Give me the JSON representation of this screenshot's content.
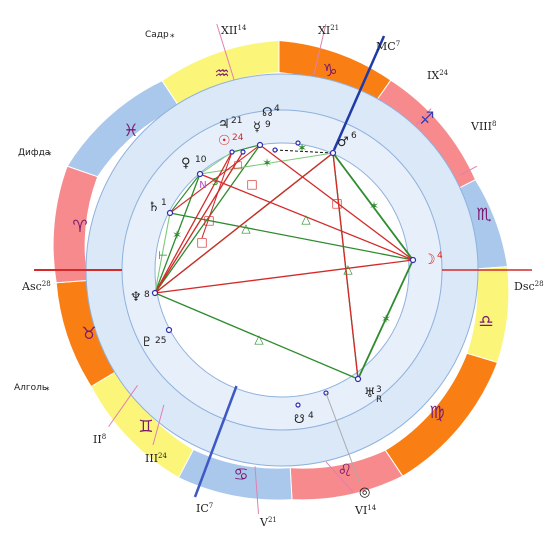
{
  "houses": {
    "asc": {
      "label": "Asc",
      "num": "28"
    },
    "dsc": {
      "label": "Dsc",
      "num": "28"
    },
    "mc": {
      "label": "MC",
      "num": "7"
    },
    "ic": {
      "label": "IC",
      "num": "7"
    },
    "ii": {
      "label": "II",
      "num": "8"
    },
    "iii": {
      "label": "III",
      "num": "24"
    },
    "v": {
      "label": "V",
      "num": "21"
    },
    "vi": {
      "label": "VI",
      "num": "14"
    },
    "viii": {
      "label": "VIII",
      "num": "8"
    },
    "ix": {
      "label": "IX",
      "num": "24"
    },
    "xi": {
      "label": "XI",
      "num": "21"
    },
    "xii": {
      "label": "XII",
      "num": "14"
    }
  },
  "fixed_stars": {
    "sadr": "Садр",
    "difda": "Дифда",
    "algol": "Алголь",
    "mark": "*"
  },
  "signs": {
    "aries": "♈",
    "taurus": "♉",
    "gemini": "♊",
    "cancer": "♋",
    "leo": "♌",
    "virgo": "♍",
    "libra": "♎",
    "scorpio": "♏",
    "sagittarius": "♐",
    "capricorn": "♑",
    "aquarius": "♒",
    "pisces": "♓"
  },
  "sign_colors": {
    "fire": "#f78a8c",
    "earth": "#f97f14",
    "air": "#fbf57a",
    "water": "#a9c8ec"
  },
  "planets": {
    "sun": {
      "glyph": "☉",
      "deg": "24"
    },
    "moon": {
      "glyph": "☽",
      "deg": "4"
    },
    "mercury": {
      "glyph": "☿",
      "deg": "9"
    },
    "venus": {
      "glyph": "♀",
      "deg": "10"
    },
    "mars": {
      "glyph": "♂",
      "deg": "6"
    },
    "jupiter": {
      "glyph": "♃",
      "deg": "21"
    },
    "saturn": {
      "glyph": "♄",
      "deg": "1"
    },
    "uranus": {
      "glyph": "♅",
      "deg": "3",
      "retro": "R"
    },
    "neptune": {
      "glyph": "♆",
      "deg": "8"
    },
    "pluto": {
      "glyph": "♇",
      "deg": "25"
    },
    "node": {
      "glyph": "☊",
      "deg": "4"
    },
    "south_node": {
      "glyph": "☋",
      "deg": "4"
    },
    "extra_mark": "◎"
  },
  "aspects": {
    "trine": "△",
    "square": "□",
    "sextile": "✶",
    "sesquare": "S",
    "novile": "N"
  },
  "colors": {
    "harmonious": "#2e8b2e",
    "tense": "#d42a2a",
    "axis": "#1f3aa8"
  }
}
